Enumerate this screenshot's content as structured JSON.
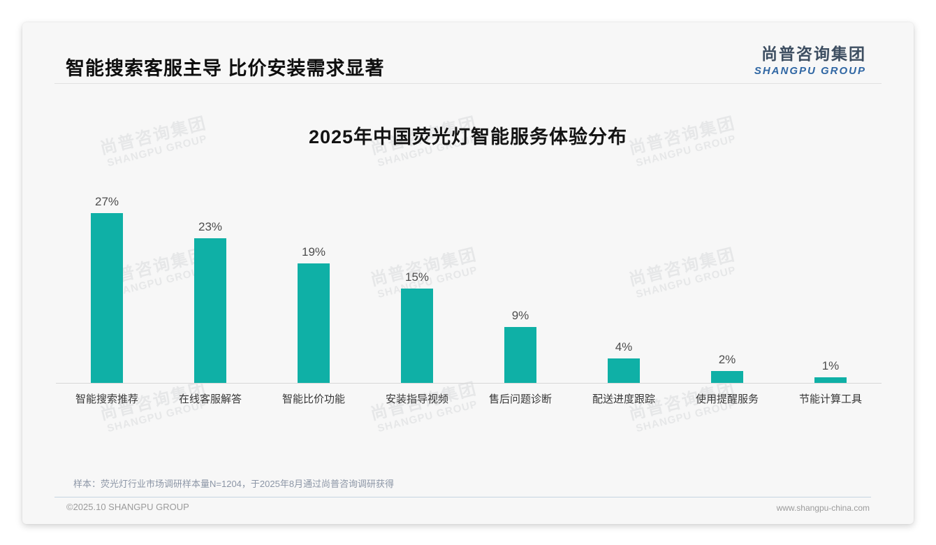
{
  "header": {
    "title": "智能搜索客服主导 比价安装需求显著",
    "logo_cn": "尚普咨询集团",
    "logo_en": "SHANGPU GROUP"
  },
  "watermark": {
    "line1": "尚普咨询集团",
    "line2": "SHANGPU GROUP"
  },
  "chart_data": {
    "type": "bar",
    "title": "2025年中国荧光灯智能服务体验分布",
    "categories": [
      "智能搜索推荐",
      "在线客服解答",
      "智能比价功能",
      "安装指导视频",
      "售后问题诊断",
      "配送进度跟踪",
      "使用提醒服务",
      "节能计算工具"
    ],
    "values": [
      27,
      23,
      19,
      15,
      9,
      4,
      2,
      1
    ],
    "data_labels": [
      "27%",
      "23%",
      "19%",
      "15%",
      "9%",
      "4%",
      "2%",
      "1%"
    ],
    "unit": "%",
    "bar_color": "#0fb0a6",
    "ylim": [
      0,
      30
    ],
    "grid": false,
    "legend": false,
    "xlabel": "",
    "ylabel": ""
  },
  "footnote": "样本：荧光灯行业市场调研样本量N=1204，于2025年8月通过尚普咨询调研获得",
  "footer": {
    "left": "©2025.10 SHANGPU GROUP",
    "right": "www.shangpu-china.com"
  }
}
